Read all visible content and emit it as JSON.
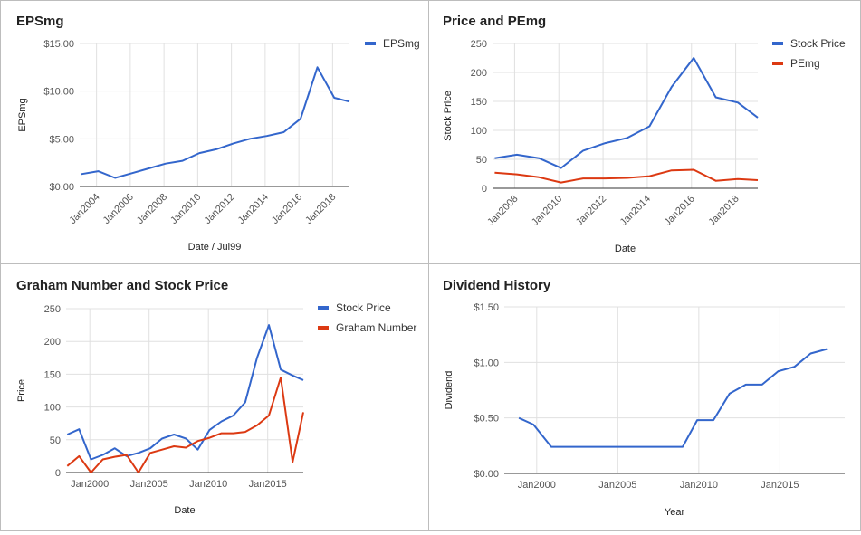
{
  "chart_data": [
    {
      "id": "eps",
      "type": "line",
      "title": "EPSmg",
      "xlabel": "Date / Jul99",
      "ylabel": "EPSmg",
      "xlim": [
        2003,
        2019
      ],
      "ylim": [
        0,
        15
      ],
      "yticks": [
        {
          "value": 0,
          "label": "$0.00"
        },
        {
          "value": 5,
          "label": "$5.00"
        },
        {
          "value": 10,
          "label": "$10.00"
        },
        {
          "value": 15,
          "label": "$15.00"
        }
      ],
      "xticks": [
        {
          "value": 2004,
          "label": "Jan2004"
        },
        {
          "value": 2006,
          "label": "Jan2006"
        },
        {
          "value": 2008,
          "label": "Jan2008"
        },
        {
          "value": 2010,
          "label": "Jan2010"
        },
        {
          "value": 2012,
          "label": "Jan2012"
        },
        {
          "value": 2014,
          "label": "Jan2014"
        },
        {
          "value": 2016,
          "label": "Jan2016"
        },
        {
          "value": 2018,
          "label": "Jan2018"
        }
      ],
      "grid": true,
      "legend": "right",
      "series": [
        {
          "name": "EPSmg",
          "color": "#3366cc",
          "x": [
            2003.1,
            2004.1,
            2005.1,
            2006.1,
            2007.1,
            2008.1,
            2009.1,
            2010.1,
            2011.1,
            2012.1,
            2013.1,
            2014.1,
            2015.1,
            2016.1,
            2017.1,
            2018.1,
            2019.0
          ],
          "y": [
            1.3,
            1.6,
            0.9,
            1.4,
            1.9,
            2.4,
            2.7,
            3.5,
            3.9,
            4.5,
            5.0,
            5.3,
            5.7,
            7.1,
            12.5,
            9.3,
            8.9
          ]
        }
      ]
    },
    {
      "id": "pe",
      "type": "line",
      "title": "Price and PEmg",
      "xlabel": "Date",
      "ylabel": "Stock Price",
      "xlim": [
        2007,
        2019
      ],
      "ylim": [
        0,
        250
      ],
      "yticks": [
        {
          "value": 0,
          "label": "0"
        },
        {
          "value": 50,
          "label": "50"
        },
        {
          "value": 100,
          "label": "100"
        },
        {
          "value": 150,
          "label": "150"
        },
        {
          "value": 200,
          "label": "200"
        },
        {
          "value": 250,
          "label": "250"
        }
      ],
      "xticks": [
        {
          "value": 2008,
          "label": "Jan2008"
        },
        {
          "value": 2010,
          "label": "Jan2010"
        },
        {
          "value": 2012,
          "label": "Jan2012"
        },
        {
          "value": 2014,
          "label": "Jan2014"
        },
        {
          "value": 2016,
          "label": "Jan2016"
        },
        {
          "value": 2018,
          "label": "Jan2018"
        }
      ],
      "grid": true,
      "legend": "right",
      "series": [
        {
          "name": "Stock Price",
          "color": "#3366cc",
          "x": [
            2007.1,
            2008.1,
            2009.1,
            2010.1,
            2011.1,
            2012.1,
            2013.1,
            2014.1,
            2015.1,
            2016.1,
            2017.1,
            2018.1,
            2019.0
          ],
          "y": [
            52,
            58,
            52,
            35,
            65,
            78,
            87,
            107,
            175,
            225,
            157,
            148,
            122
          ]
        },
        {
          "name": "PEmg",
          "color": "#dc3912",
          "x": [
            2007.1,
            2008.1,
            2009.1,
            2010.1,
            2011.1,
            2012.1,
            2013.1,
            2014.1,
            2015.1,
            2016.1,
            2017.1,
            2018.1,
            2019.0
          ],
          "y": [
            27,
            24,
            19,
            10,
            17,
            17,
            18,
            21,
            31,
            32,
            13,
            16,
            14
          ]
        }
      ]
    },
    {
      "id": "graham",
      "type": "line",
      "title": "Graham Number and Stock Price",
      "xlabel": "Date",
      "ylabel": "Price",
      "xlim": [
        1998,
        2018
      ],
      "ylim": [
        0,
        250
      ],
      "yticks": [
        {
          "value": 0,
          "label": "0"
        },
        {
          "value": 50,
          "label": "50"
        },
        {
          "value": 100,
          "label": "100"
        },
        {
          "value": 150,
          "label": "150"
        },
        {
          "value": 200,
          "label": "200"
        },
        {
          "value": 250,
          "label": "250"
        }
      ],
      "xticks": [
        {
          "value": 2000,
          "label": "Jan2000"
        },
        {
          "value": 2005,
          "label": "Jan2005"
        },
        {
          "value": 2010,
          "label": "Jan2010"
        },
        {
          "value": 2015,
          "label": "Jan2015"
        }
      ],
      "grid": true,
      "legend": "right",
      "series": [
        {
          "name": "Stock Price",
          "color": "#3366cc",
          "x": [
            1998.1,
            1999.1,
            2000.1,
            2001.1,
            2002.1,
            2003.1,
            2004.1,
            2005.1,
            2006.1,
            2007.1,
            2008.1,
            2009.1,
            2010.1,
            2011.1,
            2012.1,
            2013.1,
            2014.1,
            2015.1,
            2016.1,
            2017.1,
            2018.0
          ],
          "y": [
            58,
            66,
            20,
            27,
            37,
            25,
            30,
            37,
            52,
            58,
            52,
            35,
            65,
            78,
            87,
            107,
            175,
            225,
            157,
            148,
            141
          ]
        },
        {
          "name": "Graham Number",
          "color": "#dc3912",
          "x": [
            1998.1,
            1999.1,
            2000.1,
            2001.1,
            2002.1,
            2003.1,
            2004.1,
            2005.1,
            2006.1,
            2007.1,
            2008.1,
            2009.1,
            2010.1,
            2011.1,
            2012.1,
            2013.1,
            2014.1,
            2015.1,
            2016.1,
            2017.1,
            2018.0
          ],
          "y": [
            10,
            25,
            0,
            20,
            24,
            27,
            0,
            30,
            35,
            40,
            38,
            48,
            53,
            60,
            60,
            62,
            72,
            87,
            145,
            16,
            92
          ]
        }
      ]
    },
    {
      "id": "div",
      "type": "line",
      "title": "Dividend History",
      "xlabel": "Year",
      "ylabel": "Dividend",
      "xlim": [
        1998,
        2019
      ],
      "ylim": [
        0,
        1.5
      ],
      "yticks": [
        {
          "value": 0,
          "label": "$0.00"
        },
        {
          "value": 0.5,
          "label": "$0.50"
        },
        {
          "value": 1.0,
          "label": "$1.00"
        },
        {
          "value": 1.5,
          "label": "$1.50"
        }
      ],
      "xticks": [
        {
          "value": 2000,
          "label": "Jan2000"
        },
        {
          "value": 2005,
          "label": "Jan2005"
        },
        {
          "value": 2010,
          "label": "Jan2010"
        },
        {
          "value": 2015,
          "label": "Jan2015"
        }
      ],
      "grid": true,
      "legend": "none",
      "series": [
        {
          "name": "",
          "color": "#3366cc",
          "x": [
            1998.9,
            1999.8,
            2000.9,
            2009.0,
            2009.9,
            2010.9,
            2011.9,
            2012.9,
            2013.9,
            2014.9,
            2015.9,
            2016.9,
            2017.9
          ],
          "y": [
            0.5,
            0.44,
            0.24,
            0.24,
            0.48,
            0.48,
            0.72,
            0.8,
            0.8,
            0.92,
            0.96,
            1.08,
            1.12
          ]
        }
      ]
    }
  ]
}
